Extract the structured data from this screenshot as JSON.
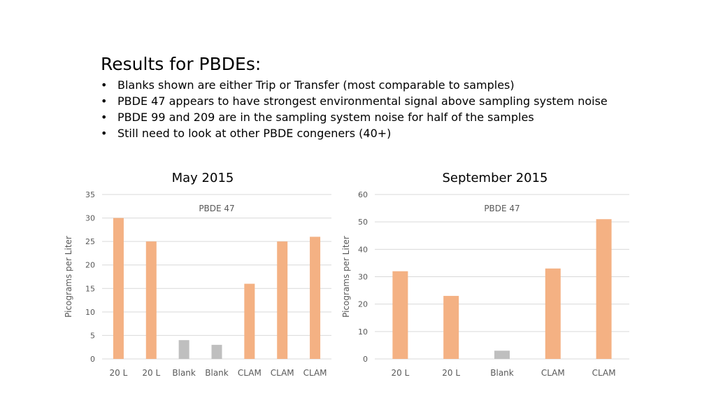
{
  "heading": "Results for PBDEs:",
  "bullet_symbol": "•",
  "bullets": [
    "Blanks shown are either Trip or Transfer (most comparable to samples)",
    "PBDE 47 appears to have strongest environmental signal above sampling system noise",
    "PBDE 99 and 209 are in the sampling system noise for half of the samples",
    "Still need to look at other PBDE congeners (40+)"
  ],
  "colors": {
    "sample": "#f4b183",
    "blank": "#bfbfbf",
    "grid": "#d9d9d9",
    "tick": "#595959"
  },
  "chart_data": [
    {
      "type": "bar",
      "title": "May 2015",
      "subtitle": "PBDE 47",
      "ylabel": "Picograms per Liter",
      "xlabel": "",
      "ylim": [
        0,
        35
      ],
      "yticks": [
        0,
        5,
        10,
        15,
        20,
        25,
        30,
        35
      ],
      "grid": true,
      "categories": [
        "20 L",
        "20 L",
        "Blank",
        "Blank",
        "CLAM",
        "CLAM",
        "CLAM"
      ],
      "values": [
        30,
        25,
        4,
        3,
        16,
        25,
        26
      ],
      "kinds": [
        "sample",
        "sample",
        "blank",
        "blank",
        "sample",
        "sample",
        "sample"
      ]
    },
    {
      "type": "bar",
      "title": "September 2015",
      "subtitle": "PBDE 47",
      "ylabel": "Picograms per Liter",
      "xlabel": "",
      "ylim": [
        0,
        60
      ],
      "yticks": [
        0,
        10,
        20,
        30,
        40,
        50,
        60
      ],
      "grid": true,
      "categories": [
        "20 L",
        "20 L",
        "Blank",
        "CLAM",
        "CLAM"
      ],
      "values": [
        32,
        23,
        3,
        33,
        51
      ],
      "kinds": [
        "sample",
        "sample",
        "blank",
        "sample",
        "sample"
      ]
    }
  ]
}
